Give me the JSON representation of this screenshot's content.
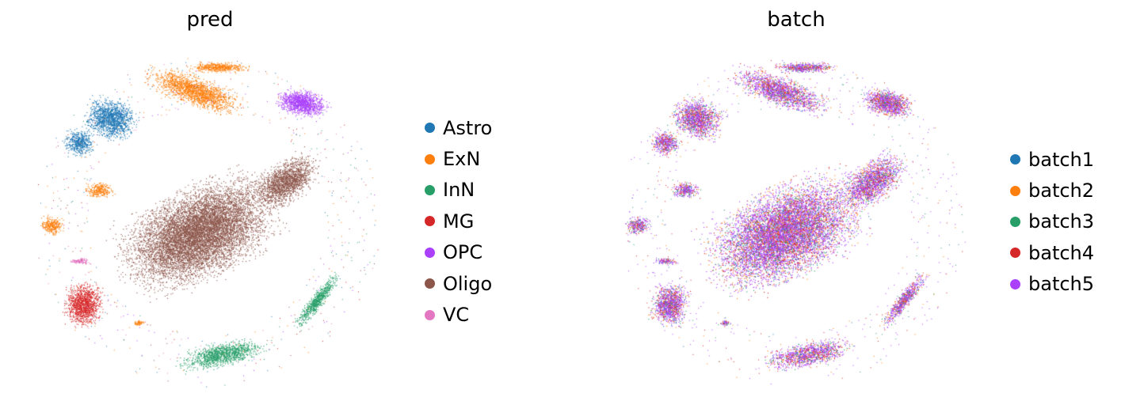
{
  "chart_data": [
    {
      "type": "scatter",
      "title": "pred",
      "xlabel": "",
      "ylabel": "",
      "grid": false,
      "legend_position": "right",
      "legend": [
        {
          "label": "Astro",
          "color": "#1f77b4"
        },
        {
          "label": "ExN",
          "color": "#ff7f0e"
        },
        {
          "label": "InN",
          "color": "#279e68"
        },
        {
          "label": "MG",
          "color": "#d62728"
        },
        {
          "label": "OPC",
          "color": "#aa40fc"
        },
        {
          "label": "Oligo",
          "color": "#8c564b"
        },
        {
          "label": "VC",
          "color": "#e377c2"
        }
      ]
    },
    {
      "type": "scatter",
      "title": "batch",
      "xlabel": "",
      "ylabel": "",
      "grid": false,
      "legend_position": "right",
      "legend": [
        {
          "label": "batch1",
          "color": "#1f77b4"
        },
        {
          "label": "batch2",
          "color": "#ff7f0e"
        },
        {
          "label": "batch3",
          "color": "#279e68"
        },
        {
          "label": "batch4",
          "color": "#d62728"
        },
        {
          "label": "batch5",
          "color": "#aa40fc"
        }
      ]
    }
  ]
}
